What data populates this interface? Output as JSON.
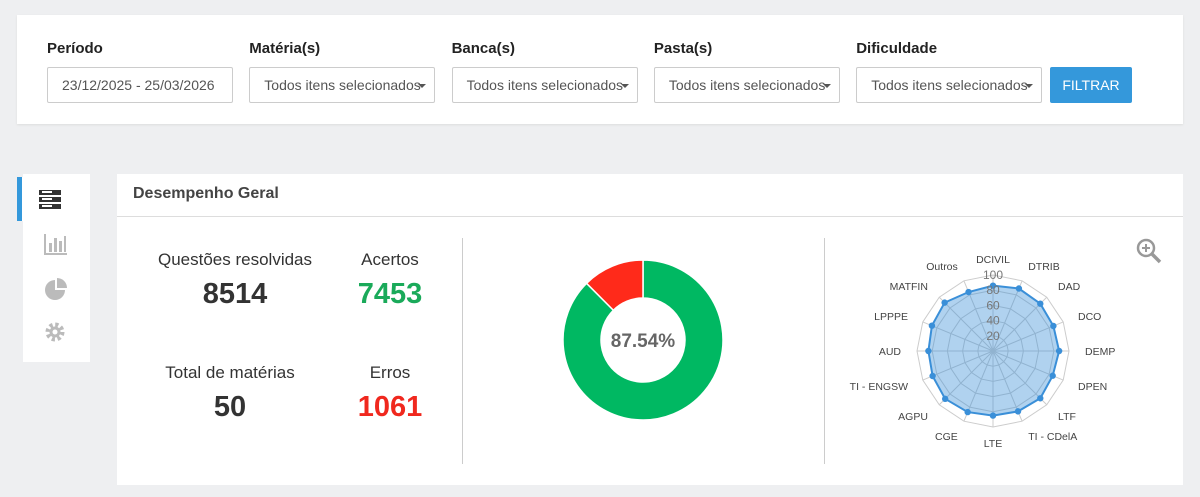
{
  "filters": [
    {
      "label": "Período",
      "value": "23/12/2025 - 25/03/2026"
    },
    {
      "label": "Matéria(s)",
      "value": "Todos itens selecionados"
    },
    {
      "label": "Banca(s)",
      "value": "Todos itens selecionados"
    },
    {
      "label": "Pasta(s)",
      "value": "Todos itens selecionados"
    },
    {
      "label": "Dificuldade",
      "value": "Todos itens selecionados"
    }
  ],
  "filter_button": "FILTRAR",
  "panel": {
    "title": "Desempenho Geral"
  },
  "stats": [
    {
      "label": "Questões resolvidas",
      "value": 8514,
      "color": "#333333"
    },
    {
      "label": "Acertos",
      "value": 7453,
      "color": "#1aaa5a"
    },
    {
      "label": "Total de matérias",
      "value": 50,
      "color": "#333333"
    },
    {
      "label": "Erros",
      "value": 1061,
      "color": "#f0281e"
    }
  ],
  "donut": {
    "center_label": "87.54%",
    "colors": [
      "#00b862",
      "#ff2a1a"
    ]
  },
  "radar": {
    "type": "radar",
    "categories": [
      "DCIVIL",
      "DTRIB",
      "DAD",
      "DCO",
      "DEMP",
      "DPEN",
      "LTF",
      "TI - CDelA",
      "LTE",
      "CGE",
      "AGPU",
      "TI - ENGSW",
      "AUD",
      "LPPPE",
      "MATFIN",
      "Outros"
    ],
    "values": [
      86,
      89,
      88,
      86,
      87,
      85,
      88,
      86,
      85,
      87,
      89,
      86,
      85,
      87,
      90,
      84
    ],
    "color": "#3a8fd8",
    "rlim": [
      0,
      100
    ],
    "rticks": [
      20,
      40,
      60,
      80,
      100
    ]
  }
}
